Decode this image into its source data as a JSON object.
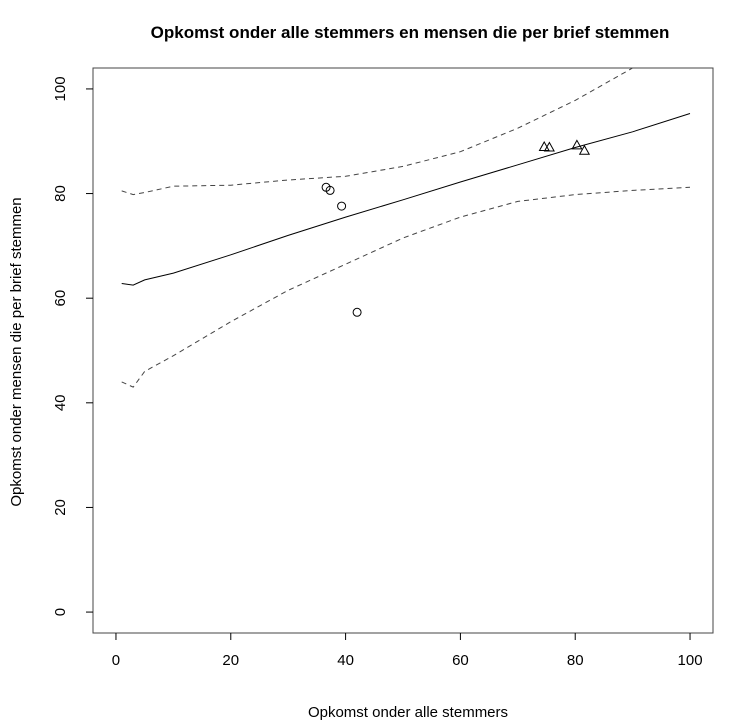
{
  "chart_data": {
    "type": "scatter",
    "title": "Opkomst onder alle stemmers en mensen die per brief stemmen",
    "xlabel": "Opkomst onder alle stemmers",
    "ylabel": "Opkomst onder mensen die per brief stemmen",
    "xlim": [
      -4,
      104
    ],
    "ylim": [
      -4,
      104
    ],
    "x_ticks": [
      "0",
      "20",
      "40",
      "60",
      "80",
      "100"
    ],
    "y_ticks": [
      "0",
      "20",
      "40",
      "60",
      "80",
      "100"
    ],
    "grid": false,
    "legend": "none",
    "series": [
      {
        "marker": "circle",
        "points": [
          [
            36.6,
            81.2
          ],
          [
            37.3,
            80.6
          ],
          [
            39.3,
            77.6
          ],
          [
            42.0,
            57.3
          ]
        ]
      },
      {
        "marker": "triangle",
        "points": [
          [
            74.6,
            88.9
          ],
          [
            75.5,
            88.8
          ],
          [
            80.3,
            89.2
          ],
          [
            81.6,
            88.2
          ]
        ]
      }
    ],
    "fit_line": {
      "style": "solid",
      "x": [
        1,
        3,
        5,
        10,
        20,
        30,
        40,
        50,
        60,
        70,
        80,
        90,
        100
      ],
      "y": [
        62.8,
        62.5,
        63.5,
        64.8,
        68.3,
        72.0,
        75.5,
        78.8,
        82.2,
        85.5,
        88.8,
        91.8,
        95.3
      ]
    },
    "upper_band": {
      "style": "dashed",
      "x": [
        1,
        3,
        5,
        10,
        20,
        30,
        40,
        50,
        60,
        70,
        80,
        90
      ],
      "y": [
        80.5,
        79.8,
        80.2,
        81.4,
        81.6,
        82.6,
        83.3,
        85.2,
        88.0,
        92.5,
        97.8,
        104.0
      ]
    },
    "lower_band": {
      "style": "dashed",
      "x": [
        1,
        3,
        5,
        10,
        20,
        30,
        40,
        50,
        60,
        70,
        80,
        90,
        100
      ],
      "y": [
        44.0,
        43.0,
        46.0,
        49.0,
        55.5,
        61.5,
        66.5,
        71.5,
        75.5,
        78.5,
        79.8,
        80.6,
        81.2
      ]
    },
    "colors": {
      "axis": "#000000",
      "fit": "#000000",
      "band": "#444444",
      "marker": "#000000"
    }
  }
}
